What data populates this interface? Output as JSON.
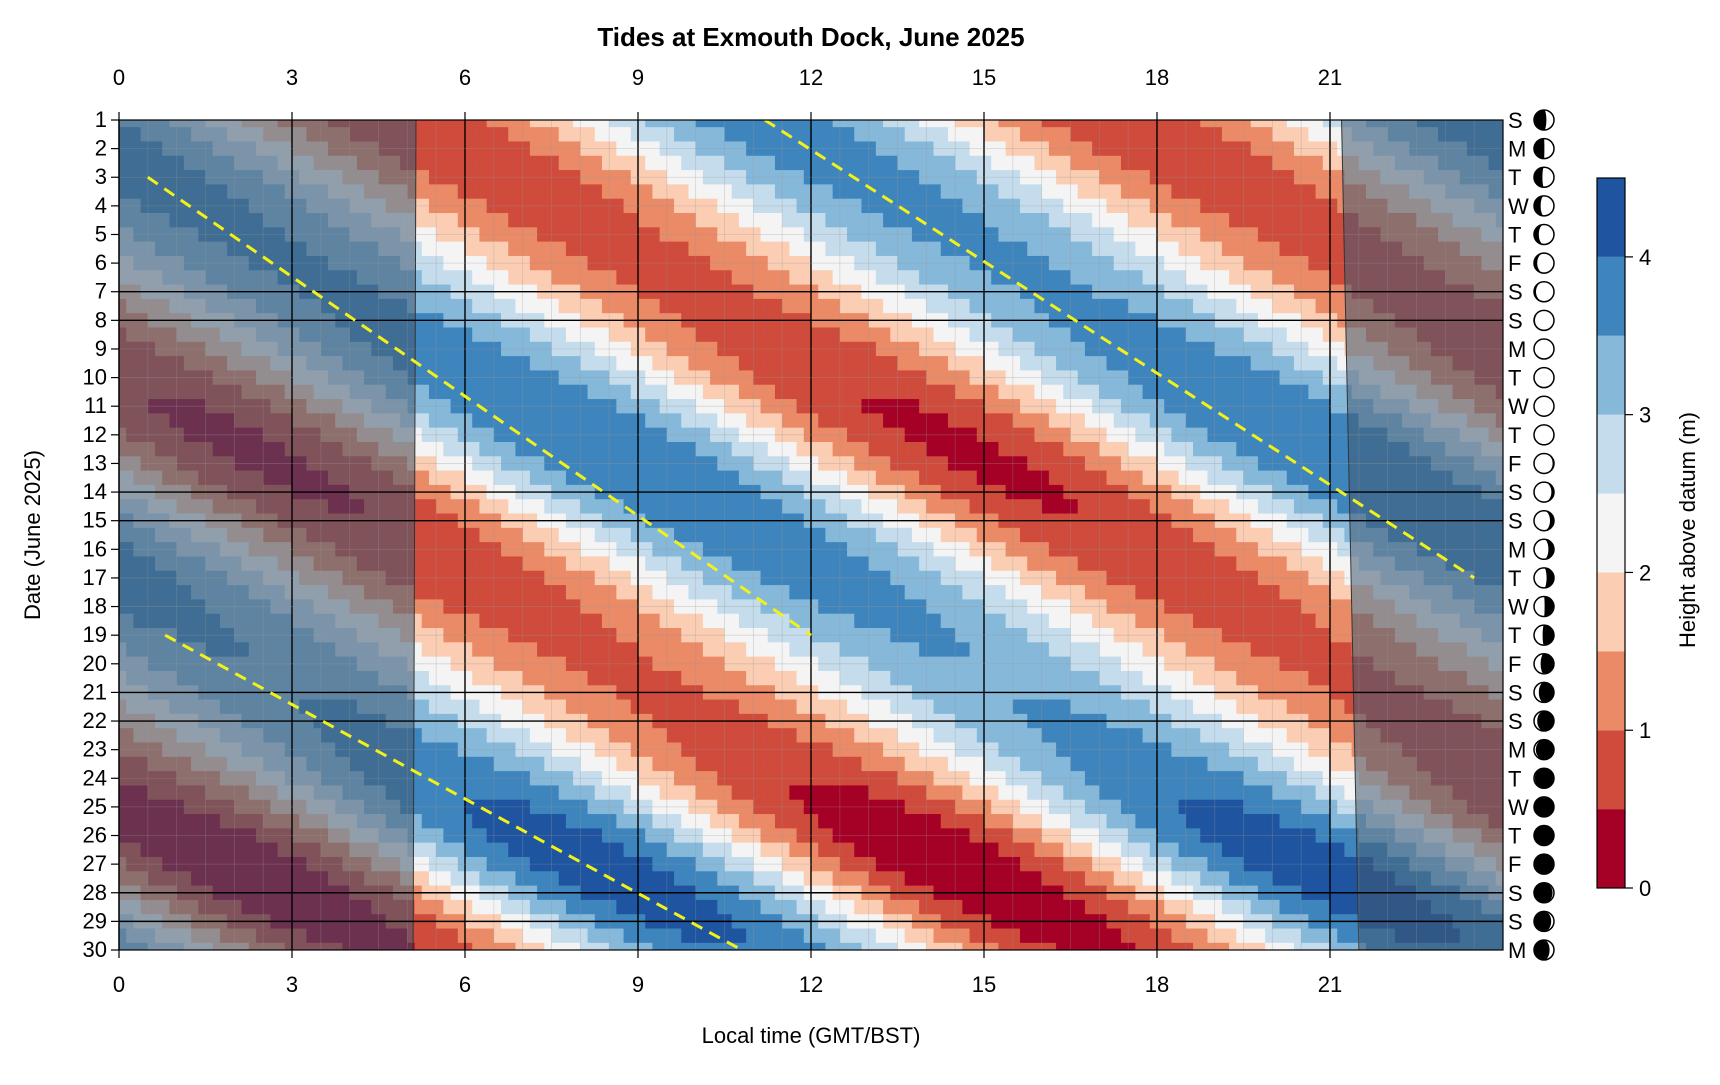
{
  "chart_data": {
    "type": "heatmap",
    "title": "Tides at Exmouth Dock, June 2025",
    "xlabel": "Local time (GMT/BST)",
    "ylabel": "Date (June 2025)",
    "colorbar_label": "Height above datum (m)",
    "x_ticks": [
      0,
      3,
      6,
      9,
      12,
      15,
      18,
      21
    ],
    "x_range": [
      0,
      24
    ],
    "days": [
      1,
      2,
      3,
      4,
      5,
      6,
      7,
      8,
      9,
      10,
      11,
      12,
      13,
      14,
      15,
      16,
      17,
      18,
      19,
      20,
      21,
      22,
      23,
      24,
      25,
      26,
      27,
      28,
      29,
      30
    ],
    "day_of_week": [
      "S",
      "M",
      "T",
      "W",
      "T",
      "F",
      "S",
      "S",
      "M",
      "T",
      "W",
      "T",
      "F",
      "S",
      "S",
      "M",
      "T",
      "W",
      "T",
      "F",
      "S",
      "S",
      "M",
      "T",
      "W",
      "T",
      "F",
      "S",
      "S",
      "M"
    ],
    "moon_illumination": [
      0.38,
      0.48,
      0.58,
      0.67,
      0.76,
      0.84,
      0.9,
      0.95,
      0.98,
      1.0,
      0.99,
      0.97,
      0.93,
      0.87,
      0.8,
      0.72,
      0.63,
      0.53,
      0.43,
      0.33,
      0.24,
      0.16,
      0.09,
      0.04,
      0.01,
      0.0,
      0.02,
      0.07,
      0.14,
      0.22
    ],
    "moon_waxing": [
      true,
      true,
      true,
      true,
      true,
      true,
      true,
      true,
      true,
      true,
      false,
      false,
      false,
      false,
      false,
      false,
      false,
      false,
      false,
      false,
      false,
      false,
      false,
      false,
      false,
      true,
      true,
      true,
      true,
      true
    ],
    "colorbar_ticks": [
      0,
      1,
      2,
      3,
      4
    ],
    "levels": [
      0,
      0.5,
      1.0,
      1.5,
      2.0,
      2.5,
      3.0,
      3.5,
      4.0,
      4.5
    ],
    "colors": [
      "#a50026",
      "#cf4b3c",
      "#ea8a66",
      "#fbcdb3",
      "#f4f4f4",
      "#c5dcec",
      "#86b8da",
      "#3f85bd",
      "#1f55a0"
    ],
    "high_water_line_color": "#f2f21a",
    "night_shade_color": "#3f5a72",
    "tide_model": {
      "period_hours": 12.42,
      "mean_level_m": 2.2,
      "amplitude_m_by_day": [
        1.55,
        1.55,
        1.5,
        1.45,
        1.4,
        1.38,
        1.38,
        1.45,
        1.55,
        1.65,
        1.75,
        1.8,
        1.8,
        1.75,
        1.7,
        1.62,
        1.55,
        1.45,
        1.35,
        1.3,
        1.3,
        1.38,
        1.5,
        1.7,
        1.88,
        2.05,
        2.1,
        2.05,
        1.95,
        1.8
      ],
      "high_water_hour_day1": 11.2,
      "daily_delay_hours": 0.84
    },
    "high_water_lines": [
      {
        "day_start": 3,
        "hour_start": 0.5,
        "day_end": 19,
        "hour_end": 12.0
      },
      {
        "day_start": 1,
        "hour_start": 11.2,
        "day_end": 17,
        "hour_end": 23.5
      },
      {
        "day_start": 19,
        "hour_start": 0.8,
        "day_end": 30,
        "hour_end": 10.8
      }
    ],
    "night_periods": [
      {
        "from_day": 1,
        "to_day": 30,
        "start_hour_day1": 0,
        "end_hour_day1": 5.15,
        "end_hour_day30": 5.1
      },
      {
        "from_day": 1,
        "to_day": 30,
        "start_hour_day1": 21.2,
        "start_hour_day30": 21.5,
        "end_hour": 24
      }
    ],
    "weekend_lines_days": [
      7,
      8,
      14,
      15,
      21,
      22,
      28,
      29
    ]
  }
}
